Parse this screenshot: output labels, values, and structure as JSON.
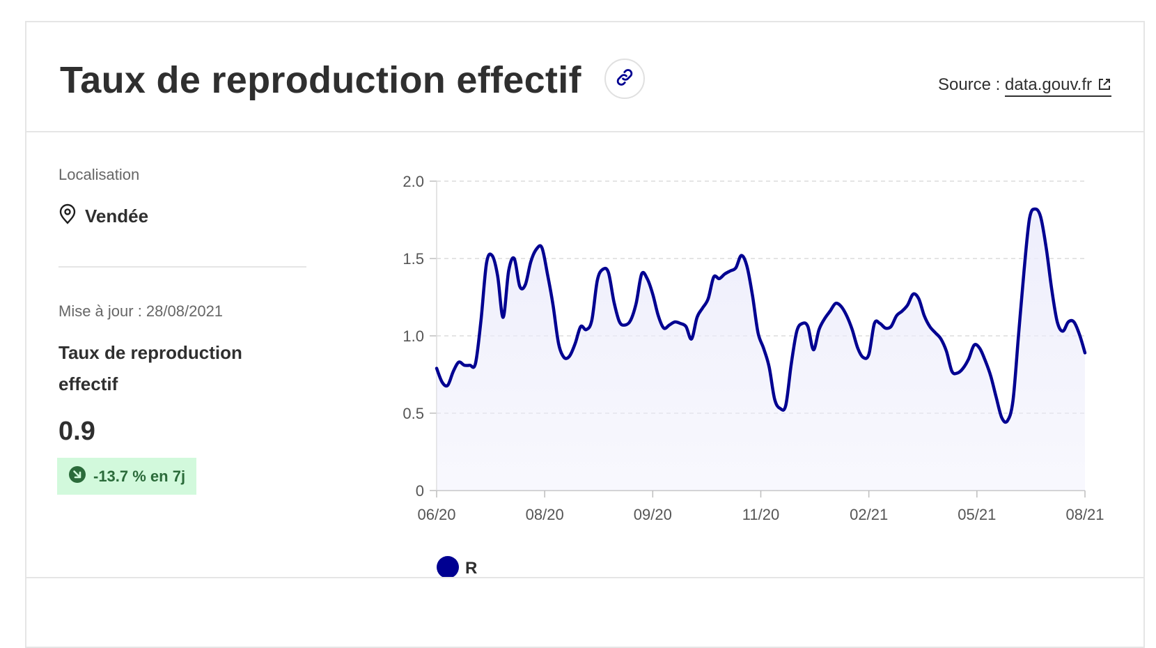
{
  "header": {
    "title": "Taux de reproduction effectif",
    "source_label": "Source :",
    "source_link": "data.gouv.fr"
  },
  "panel": {
    "location_label": "Localisation",
    "location_value": "Vendée",
    "update_label": "Mise à jour : 28/08/2021",
    "metric_name": "Taux de reproduction effectif",
    "metric_value": "0.9",
    "trend_text": "-13.7 % en 7j"
  },
  "colors": {
    "series": "#000091",
    "area": "#ececfb",
    "trend_bg": "#d2f9dc",
    "trend_fg": "#2b6b3a"
  },
  "icons": {
    "link": "link-icon",
    "external": "external-link-icon",
    "location": "location-pin-icon",
    "trend": "arrow-down-right-icon"
  },
  "chart_data": {
    "type": "area",
    "title": "",
    "xlabel": "",
    "ylabel": "",
    "ylim": [
      0,
      2
    ],
    "y_ticks": [
      "2.0",
      "1.5",
      "1.0",
      "0.5",
      "0"
    ],
    "x_ticks": [
      "06/20",
      "08/20",
      "09/20",
      "11/20",
      "02/21",
      "05/21",
      "08/21"
    ],
    "grid": "horizontal dashed",
    "legend_position": "bottom-left",
    "series": [
      {
        "name": "R",
        "values": [
          0.79,
          0.7,
          0.68,
          0.77,
          0.83,
          0.81,
          0.81,
          0.82,
          1.1,
          1.47,
          1.52,
          1.39,
          1.12,
          1.42,
          1.5,
          1.32,
          1.33,
          1.48,
          1.56,
          1.57,
          1.4,
          1.2,
          0.95,
          0.86,
          0.87,
          0.95,
          1.06,
          1.04,
          1.1,
          1.36,
          1.43,
          1.41,
          1.22,
          1.09,
          1.07,
          1.1,
          1.21,
          1.4,
          1.37,
          1.27,
          1.13,
          1.05,
          1.07,
          1.09,
          1.08,
          1.06,
          0.98,
          1.12,
          1.18,
          1.24,
          1.38,
          1.37,
          1.4,
          1.42,
          1.44,
          1.52,
          1.45,
          1.26,
          1.02,
          0.92,
          0.8,
          0.59,
          0.53,
          0.55,
          0.82,
          1.03,
          1.08,
          1.06,
          0.91,
          1.04,
          1.11,
          1.16,
          1.21,
          1.19,
          1.13,
          1.04,
          0.92,
          0.86,
          0.88,
          1.08,
          1.08,
          1.05,
          1.06,
          1.13,
          1.16,
          1.2,
          1.27,
          1.24,
          1.13,
          1.06,
          1.02,
          0.98,
          0.9,
          0.77,
          0.76,
          0.79,
          0.85,
          0.94,
          0.92,
          0.84,
          0.74,
          0.6,
          0.47,
          0.45,
          0.58,
          1.0,
          1.42,
          1.76,
          1.82,
          1.77,
          1.57,
          1.3,
          1.09,
          1.03,
          1.09,
          1.09,
          1.01,
          0.89
        ]
      }
    ]
  }
}
